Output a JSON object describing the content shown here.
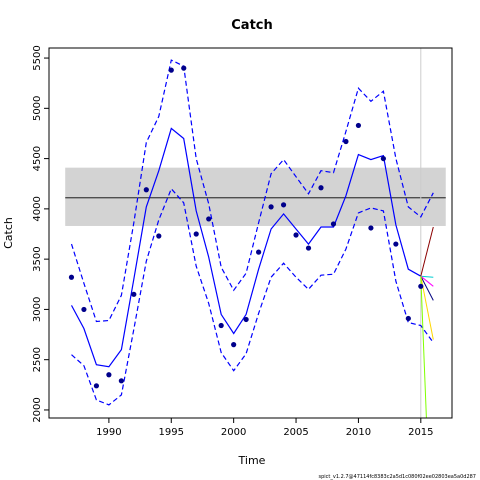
{
  "chart_data": {
    "type": "line",
    "title": "Catch",
    "xlabel": "Time",
    "ylabel": "Catch",
    "xlim": [
      1985.2,
      2017.5
    ],
    "ylim": [
      1920,
      5600
    ],
    "xticks": [
      1990,
      1995,
      2000,
      2005,
      2010,
      2015
    ],
    "yticks": [
      2000,
      2500,
      3000,
      3500,
      4000,
      4500,
      5000,
      5500
    ],
    "xtick_labels": [
      "1990",
      "1995",
      "2000",
      "2005",
      "2010",
      "2015"
    ],
    "ytick_labels": [
      "2000",
      "2500",
      "3000",
      "3500",
      "4000",
      "4500",
      "5000",
      "5500"
    ],
    "grid": false,
    "footnote": "spict_v1.2.7@47114fc8383c2a5d1c080f02ee02803ea5a0d287",
    "band": {
      "x": [
        1986.5,
        2017.0
      ],
      "ymin": 3830,
      "ymax": 4410,
      "color": "#d3d3d3"
    },
    "hline": {
      "y": 4110,
      "x": [
        1986.5,
        2017.0
      ],
      "color": "#000000"
    },
    "vline": {
      "x": 2015,
      "color": "#cccccc"
    },
    "observations": {
      "color": "#00008b",
      "x": [
        1987,
        1988,
        1989,
        1990,
        1991,
        1992,
        1993,
        1994,
        1995,
        1996,
        1997,
        1998,
        1999,
        2000,
        2001,
        2002,
        2003,
        2004,
        2005,
        2006,
        2007,
        2008,
        2009,
        2010,
        2011,
        2012,
        2013,
        2014,
        2015
      ],
      "y": [
        3320,
        3000,
        2240,
        2350,
        2290,
        3150,
        4190,
        3730,
        5380,
        5400,
        3750,
        3900,
        2840,
        2650,
        2900,
        3570,
        4020,
        4040,
        3740,
        3610,
        4210,
        3850,
        4670,
        4830,
        3810,
        4500,
        3650,
        2910,
        3230
      ]
    },
    "estimate": {
      "color": "#0000ff",
      "x": [
        1987,
        1988,
        1989,
        1990,
        1991,
        1992,
        1993,
        1994,
        1995,
        1996,
        1997,
        1998,
        1999,
        2000,
        2001,
        2002,
        2003,
        2004,
        2005,
        2006,
        2007,
        2008,
        2009,
        2010,
        2011,
        2012,
        2013,
        2014,
        2015
      ],
      "y": [
        3040,
        2810,
        2450,
        2430,
        2600,
        3300,
        4020,
        4380,
        4800,
        4700,
        3980,
        3520,
        2950,
        2760,
        2950,
        3400,
        3800,
        3950,
        3800,
        3650,
        3820,
        3820,
        4130,
        4540,
        4490,
        4530,
        3840,
        3400,
        3330
      ]
    },
    "ci_upper": {
      "color": "#0000ff",
      "x": [
        1987,
        1988,
        1989,
        1990,
        1991,
        1992,
        1993,
        1994,
        1995,
        1996,
        1997,
        1998,
        1999,
        2000,
        2001,
        2002,
        2003,
        2004,
        2005,
        2006,
        2007,
        2008,
        2009,
        2010,
        2011,
        2012,
        2013,
        2014,
        2015,
        2016
      ],
      "y": [
        3650,
        3260,
        2880,
        2890,
        3140,
        3860,
        4660,
        4920,
        5480,
        5420,
        4500,
        4050,
        3420,
        3190,
        3360,
        3860,
        4350,
        4490,
        4320,
        4150,
        4380,
        4360,
        4770,
        5200,
        5070,
        5170,
        4500,
        4020,
        3920,
        4160
      ]
    },
    "ci_lower": {
      "color": "#0000ff",
      "x": [
        1987,
        1988,
        1989,
        1990,
        1991,
        1992,
        1993,
        1994,
        1995,
        1996,
        1997,
        1998,
        1999,
        2000,
        2001,
        2002,
        2003,
        2004,
        2005,
        2006,
        2007,
        2008,
        2009,
        2010,
        2011,
        2012,
        2013,
        2014,
        2015,
        2016
      ],
      "y": [
        2550,
        2440,
        2100,
        2050,
        2150,
        2800,
        3480,
        3890,
        4200,
        4060,
        3430,
        3060,
        2570,
        2390,
        2560,
        2960,
        3320,
        3460,
        3320,
        3200,
        3340,
        3350,
        3600,
        3960,
        4010,
        3980,
        3280,
        2870,
        2840,
        2670
      ]
    },
    "predictions": [
      {
        "color": "#8b0000",
        "x": [
          2015,
          2016
        ],
        "y": [
          3330,
          3820
        ]
      },
      {
        "color": "#000080",
        "x": [
          2015,
          2016
        ],
        "y": [
          3330,
          3090
        ]
      },
      {
        "color": "#00ced1",
        "x": [
          2015,
          2016
        ],
        "y": [
          3330,
          3320
        ]
      },
      {
        "color": "#ff00ff",
        "x": [
          2015,
          2016
        ],
        "y": [
          3330,
          3230
        ]
      },
      {
        "color": "#ffd700",
        "x": [
          2015,
          2016
        ],
        "y": [
          3330,
          2700
        ]
      },
      {
        "color": "#7fff00",
        "x": [
          2015,
          2015.45
        ],
        "y": [
          3330,
          1920
        ]
      }
    ]
  }
}
